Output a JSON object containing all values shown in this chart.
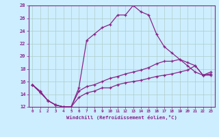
{
  "xlabel": "Windchill (Refroidissement éolien,°C)",
  "background_color": "#cceeff",
  "grid_color": "#b0ccc8",
  "line_color": "#882288",
  "xmin": -0.5,
  "xmax": 23.5,
  "ymin": 12,
  "ymax": 28,
  "yticks": [
    12,
    14,
    16,
    18,
    20,
    22,
    24,
    26,
    28
  ],
  "xticks": [
    0,
    1,
    2,
    3,
    4,
    5,
    6,
    7,
    8,
    9,
    10,
    11,
    12,
    13,
    14,
    15,
    16,
    17,
    18,
    19,
    20,
    21,
    22,
    23
  ],
  "line1_x": [
    0,
    1,
    2,
    3,
    4,
    5,
    6,
    7,
    8,
    9,
    10,
    11,
    12,
    13,
    14,
    15,
    16,
    17,
    18,
    19,
    20,
    21,
    22,
    23
  ],
  "line1_y": [
    15.5,
    14.5,
    13.0,
    12.3,
    12.0,
    12.0,
    15.0,
    22.5,
    23.5,
    24.5,
    25.0,
    26.5,
    26.5,
    28.0,
    27.0,
    26.5,
    23.5,
    21.5,
    20.5,
    19.5,
    18.5,
    17.5,
    17.0,
    17.0
  ],
  "line2_x": [
    0,
    1,
    2,
    3,
    4,
    5,
    6,
    7,
    8,
    9,
    10,
    11,
    12,
    13,
    14,
    15,
    16,
    17,
    18,
    19,
    20,
    21,
    22,
    23
  ],
  "line2_y": [
    15.5,
    14.3,
    13.0,
    12.3,
    12.0,
    12.0,
    14.5,
    15.2,
    15.5,
    16.0,
    16.5,
    16.8,
    17.2,
    17.5,
    17.8,
    18.2,
    18.8,
    19.2,
    19.2,
    19.5,
    19.0,
    18.5,
    17.0,
    17.2
  ],
  "line3_x": [
    0,
    1,
    2,
    3,
    4,
    5,
    6,
    7,
    8,
    9,
    10,
    11,
    12,
    13,
    14,
    15,
    16,
    17,
    18,
    19,
    20,
    21,
    22,
    23
  ],
  "line3_y": [
    15.5,
    14.3,
    13.0,
    12.3,
    12.0,
    12.0,
    13.5,
    14.2,
    14.5,
    15.0,
    15.0,
    15.5,
    15.8,
    16.0,
    16.2,
    16.5,
    16.8,
    17.0,
    17.2,
    17.5,
    17.8,
    18.5,
    17.0,
    17.5
  ]
}
